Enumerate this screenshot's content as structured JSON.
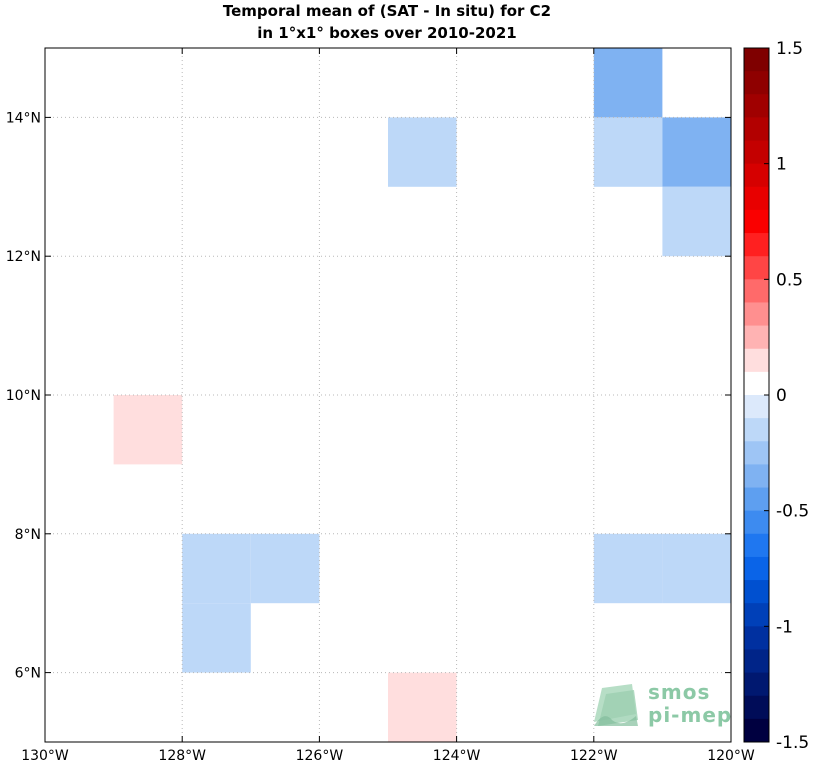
{
  "title": {
    "line1": "Temporal mean of (SAT - In situ) for C2",
    "line2": "in 1°x1° boxes over 2010-2021"
  },
  "logo": {
    "line1": "smos",
    "line2": "pi-mep"
  },
  "chart_data": {
    "type": "heatmap",
    "xlim": [
      -130,
      -120
    ],
    "ylim": [
      5,
      15
    ],
    "x_ticks": [
      -130,
      -128,
      -126,
      -124,
      -122,
      -120
    ],
    "x_tick_labels": [
      "130°W",
      "128°W",
      "126°W",
      "124°W",
      "122°W",
      "120°W"
    ],
    "y_ticks": [
      6,
      8,
      10,
      12,
      14
    ],
    "y_tick_labels": [
      "6°N",
      "8°N",
      "10°N",
      "12°N",
      "14°N"
    ],
    "grid": true,
    "cells": [
      {
        "lon": -122,
        "lat": 14,
        "value": -0.3
      },
      {
        "lon": -122,
        "lat": 13,
        "value": -0.15
      },
      {
        "lon": -121,
        "lat": 13,
        "value": -0.3
      },
      {
        "lon": -121,
        "lat": 12,
        "value": -0.15
      },
      {
        "lon": -125,
        "lat": 13,
        "value": -0.15
      },
      {
        "lon": -129,
        "lat": 9,
        "value": 0.15
      },
      {
        "lon": -128,
        "lat": 7,
        "value": -0.15
      },
      {
        "lon": -127,
        "lat": 7,
        "value": -0.15
      },
      {
        "lon": -128,
        "lat": 6,
        "value": -0.15
      },
      {
        "lon": -122,
        "lat": 7,
        "value": -0.15
      },
      {
        "lon": -121,
        "lat": 7,
        "value": -0.15
      },
      {
        "lon": -125,
        "lat": 5,
        "value": 0.15
      }
    ],
    "colorbar": {
      "min": -1.5,
      "max": 1.5,
      "ticks": [
        1.5,
        1,
        0.5,
        0,
        -0.5,
        -1,
        -1.5
      ],
      "tick_labels": [
        "1.5",
        "1",
        "0.5",
        "0",
        "-0.5",
        "-1",
        "-1.5"
      ],
      "colors_top_to_bottom": [
        "#7f0000",
        "#8f0000",
        "#a00000",
        "#b20000",
        "#c40000",
        "#d60000",
        "#e80000",
        "#fa0000",
        "#ff2020",
        "#ff4545",
        "#ff6a6a",
        "#ff8f8f",
        "#ffb3b3",
        "#ffdede",
        "#ffffff",
        "#dce9fb",
        "#bdd8f8",
        "#9ec5f5",
        "#7fb2f2",
        "#5e9ff0",
        "#3d8bf0",
        "#1f77f0",
        "#0a64e8",
        "#0050d0",
        "#0040b8",
        "#0030a0",
        "#002488",
        "#001870",
        "#000c58",
        "#000040"
      ]
    }
  }
}
